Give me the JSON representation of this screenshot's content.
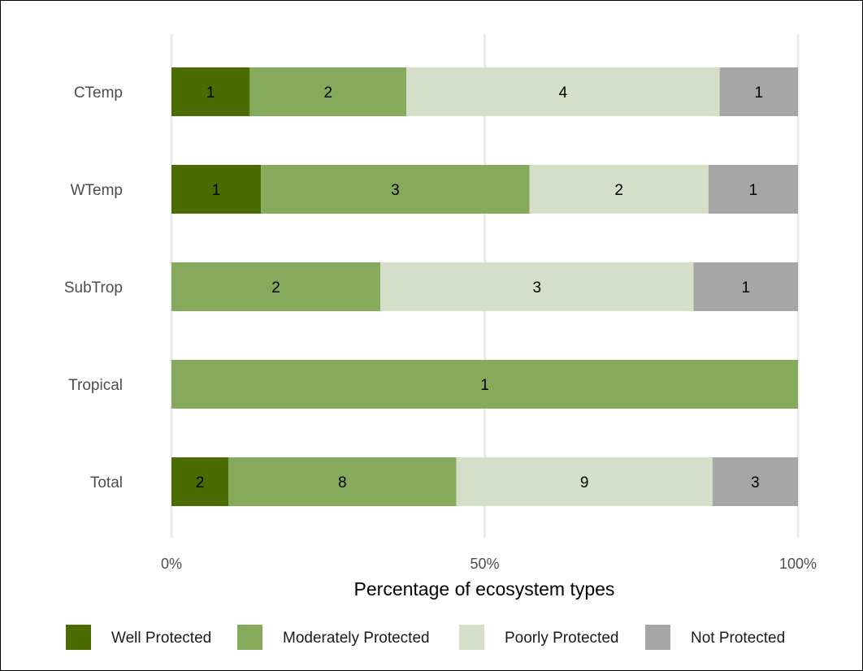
{
  "chart_data": {
    "type": "bar",
    "orientation": "horizontal",
    "stacked": "percent",
    "categories": [
      "CTemp",
      "WTemp",
      "SubTrop",
      "Tropical",
      "Total"
    ],
    "series": [
      {
        "name": "Well Protected",
        "color": "#4a6b00",
        "values": [
          1,
          1,
          0,
          0,
          2
        ]
      },
      {
        "name": "Moderately Protected",
        "color": "#85aa5c",
        "values": [
          2,
          3,
          2,
          1,
          8
        ]
      },
      {
        "name": "Poorly Protected",
        "color": "#d5dec6",
        "values": [
          4,
          2,
          3,
          0,
          9
        ]
      },
      {
        "name": "Not Protected",
        "color": "#a6a6a6",
        "values": [
          1,
          1,
          1,
          0,
          3
        ]
      }
    ],
    "xlabel": "Percentage of ecosystem types",
    "ylabel": "",
    "xlim": [
      0,
      100
    ],
    "x_ticks": [
      "0%",
      "50%",
      "100%"
    ],
    "grid": "vertical major",
    "legend_position": "bottom",
    "gridline_color": "#ebebeb"
  }
}
